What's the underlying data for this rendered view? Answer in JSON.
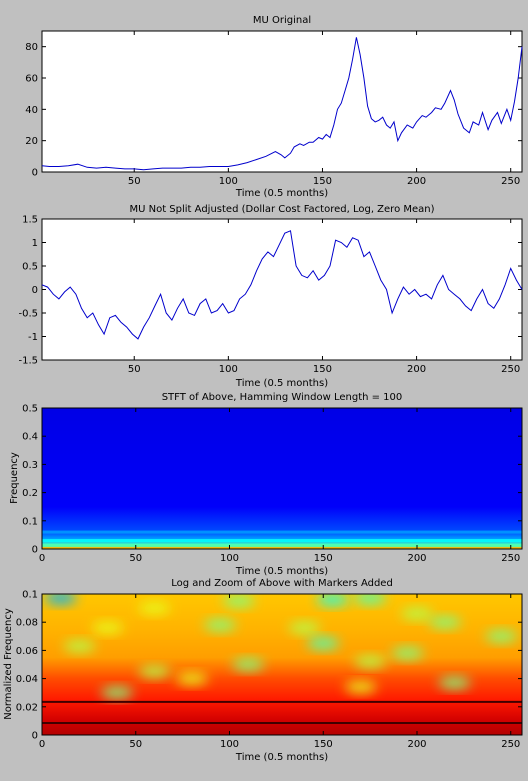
{
  "figure": {
    "background": "#c0c0c0"
  },
  "chart_data": [
    {
      "type": "line",
      "title": "MU Original",
      "xlabel": "Time (0.5 months)",
      "ylabel": "",
      "xlim": [
        1,
        256
      ],
      "ylim": [
        0,
        90
      ],
      "xticks": [
        50,
        100,
        150,
        200,
        250
      ],
      "yticks": [
        0,
        20,
        40,
        60,
        80
      ],
      "line_color": "#0000cc",
      "grid": false,
      "series": [
        {
          "x": [
            1,
            5,
            10,
            15,
            20,
            25,
            30,
            35,
            40,
            45,
            50,
            55,
            60,
            65,
            70,
            75,
            80,
            85,
            90,
            95,
            100,
            105,
            110,
            115,
            120,
            125,
            128,
            130,
            133,
            135,
            138,
            140,
            143,
            145,
            148,
            150,
            152,
            154,
            156,
            158,
            160,
            162,
            164,
            166,
            168,
            170,
            172,
            174,
            176,
            178,
            180,
            182,
            184,
            186,
            188,
            190,
            192,
            195,
            198,
            200,
            203,
            205,
            208,
            210,
            213,
            215,
            218,
            220,
            222,
            225,
            228,
            230,
            233,
            235,
            238,
            240,
            243,
            245,
            248,
            250,
            252,
            254,
            256
          ],
          "y": [
            4,
            3.5,
            3.5,
            4,
            5,
            3,
            2.5,
            3,
            2.5,
            2,
            2,
            1.5,
            2,
            2.5,
            2.5,
            2.5,
            3,
            3,
            3.5,
            3.5,
            3.5,
            4.5,
            6,
            8,
            10,
            13,
            11,
            9,
            12,
            16,
            18,
            17,
            19,
            19,
            22,
            21,
            24,
            22,
            30,
            40,
            44,
            52,
            60,
            72,
            86,
            75,
            60,
            42,
            34,
            32,
            33,
            35,
            30,
            28,
            32,
            20,
            25,
            30,
            28,
            32,
            36,
            35,
            38,
            41,
            40,
            44,
            52,
            46,
            37,
            28,
            25,
            32,
            30,
            38,
            27,
            33,
            38,
            31,
            40,
            33,
            45,
            60,
            80
          ]
        }
      ]
    },
    {
      "type": "line",
      "title": "MU Not Split Adjusted (Dollar Cost Factored, Log, Zero Mean)",
      "xlabel": "Time (0.5 months)",
      "ylabel": "",
      "xlim": [
        1,
        256
      ],
      "ylim": [
        -1.5,
        1.5
      ],
      "xticks": [
        50,
        100,
        150,
        200,
        250
      ],
      "yticks": [
        -1.5,
        -1,
        -0.5,
        0,
        0.5,
        1,
        1.5
      ],
      "line_color": "#0000cc",
      "grid": false,
      "series": [
        {
          "x": [
            1,
            4,
            7,
            10,
            13,
            16,
            19,
            22,
            25,
            28,
            31,
            34,
            37,
            40,
            43,
            46,
            49,
            52,
            55,
            58,
            61,
            64,
            67,
            70,
            73,
            76,
            79,
            82,
            85,
            88,
            91,
            94,
            97,
            100,
            103,
            106,
            109,
            112,
            115,
            118,
            121,
            124,
            127,
            130,
            133,
            136,
            139,
            142,
            145,
            148,
            151,
            154,
            157,
            160,
            163,
            166,
            169,
            172,
            175,
            178,
            181,
            184,
            187,
            190,
            193,
            196,
            199,
            202,
            205,
            208,
            211,
            214,
            217,
            220,
            223,
            226,
            229,
            232,
            235,
            238,
            241,
            244,
            247,
            250,
            253,
            256
          ],
          "y": [
            0.1,
            0.05,
            -0.1,
            -0.2,
            -0.05,
            0.05,
            -0.1,
            -0.4,
            -0.6,
            -0.5,
            -0.75,
            -0.95,
            -0.6,
            -0.55,
            -0.7,
            -0.8,
            -0.95,
            -1.05,
            -0.8,
            -0.6,
            -0.35,
            -0.1,
            -0.5,
            -0.65,
            -0.4,
            -0.2,
            -0.5,
            -0.55,
            -0.3,
            -0.2,
            -0.5,
            -0.45,
            -0.3,
            -0.5,
            -0.45,
            -0.2,
            -0.1,
            0.1,
            0.4,
            0.65,
            0.8,
            0.7,
            0.95,
            1.2,
            1.25,
            0.5,
            0.3,
            0.25,
            0.4,
            0.2,
            0.3,
            0.5,
            1.05,
            1.0,
            0.9,
            1.1,
            1.05,
            0.7,
            0.8,
            0.5,
            0.2,
            0.0,
            -0.5,
            -0.2,
            0.05,
            -0.1,
            0.0,
            -0.15,
            -0.1,
            -0.2,
            0.1,
            0.3,
            0.0,
            -0.1,
            -0.2,
            -0.35,
            -0.45,
            -0.2,
            0.0,
            -0.3,
            -0.4,
            -0.2,
            0.1,
            0.45,
            0.2,
            0.0
          ]
        }
      ]
    },
    {
      "type": "heatmap",
      "title": "STFT of Above, Hamming Window Length = 100",
      "xlabel": "Time (0.5 months)",
      "ylabel": "Frequency",
      "xlim": [
        0,
        256
      ],
      "ylim": [
        0,
        0.5
      ],
      "xticks": [
        0,
        50,
        100,
        150,
        200,
        250
      ],
      "yticks": [
        0,
        0.1,
        0.2,
        0.3,
        0.4,
        0.5
      ],
      "colormap": "jet",
      "bands": [
        {
          "y": 0.002,
          "value": 0.7
        },
        {
          "y": 0.012,
          "value": 0.45
        },
        {
          "y": 0.03,
          "value": 0.38
        },
        {
          "y": 0.06,
          "value": 0.28
        }
      ]
    },
    {
      "type": "heatmap",
      "title": "Log and Zoom of Above with Markers Added",
      "xlabel": "Time (0.5 months)",
      "ylabel": "Normalized Frequency",
      "xlim": [
        0,
        256
      ],
      "ylim": [
        0,
        0.1
      ],
      "xticks": [
        0,
        50,
        100,
        150,
        200,
        250
      ],
      "yticks": [
        0,
        0.02,
        0.04,
        0.06,
        0.08,
        0.1
      ],
      "colormap": "jet",
      "markers": [
        0.0085,
        0.0235
      ],
      "marker_color": "#400000",
      "blobs": [
        {
          "x": 10,
          "y": 0.097,
          "value": 0.3
        },
        {
          "x": 60,
          "y": 0.09,
          "value": 0.6
        },
        {
          "x": 105,
          "y": 0.095,
          "value": 0.5
        },
        {
          "x": 155,
          "y": 0.096,
          "value": 0.4
        },
        {
          "x": 175,
          "y": 0.097,
          "value": 0.45
        },
        {
          "x": 200,
          "y": 0.086,
          "value": 0.55
        },
        {
          "x": 35,
          "y": 0.076,
          "value": 0.6
        },
        {
          "x": 95,
          "y": 0.078,
          "value": 0.5
        },
        {
          "x": 140,
          "y": 0.076,
          "value": 0.55
        },
        {
          "x": 215,
          "y": 0.08,
          "value": 0.5
        },
        {
          "x": 245,
          "y": 0.07,
          "value": 0.5
        },
        {
          "x": 20,
          "y": 0.063,
          "value": 0.55
        },
        {
          "x": 150,
          "y": 0.065,
          "value": 0.45
        },
        {
          "x": 110,
          "y": 0.05,
          "value": 0.5
        },
        {
          "x": 175,
          "y": 0.052,
          "value": 0.55
        },
        {
          "x": 195,
          "y": 0.058,
          "value": 0.5
        },
        {
          "x": 60,
          "y": 0.045,
          "value": 0.55
        },
        {
          "x": 80,
          "y": 0.04,
          "value": 0.6
        },
        {
          "x": 40,
          "y": 0.03,
          "value": 0.5
        },
        {
          "x": 220,
          "y": 0.037,
          "value": 0.5
        },
        {
          "x": 170,
          "y": 0.034,
          "value": 0.6
        }
      ]
    }
  ]
}
